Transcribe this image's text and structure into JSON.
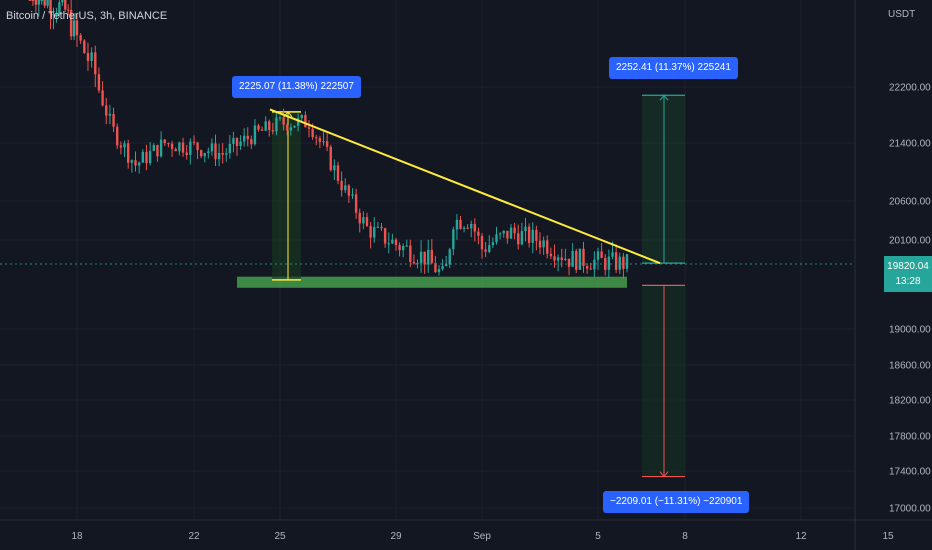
{
  "header": {
    "title": "Bitcoin / TetherUS, 3h, BINANCE",
    "currency": "USDT"
  },
  "price_tag": {
    "price": "19820.04",
    "countdown": "13:28"
  },
  "measures": [
    {
      "label": "2225.07 (11.38%) 222507"
    },
    {
      "label": "2252.41 (11.37%) 225241"
    },
    {
      "label": "−2209.01 (−11.31%) −220901"
    }
  ],
  "colors": {
    "background": "#131722",
    "up": "#26a69a",
    "down": "#ef5350",
    "trendline": "#ffeb3b",
    "support_zone": "#4caf50",
    "tag": "#2962ff"
  },
  "chart_data": {
    "type": "candlestick",
    "title": "Bitcoin / TetherUS, 3h, BINANCE",
    "ylabel": "USDT",
    "x_ticks": [
      "18",
      "22",
      "25",
      "29",
      "Sep",
      "5",
      "8",
      "12",
      "15"
    ],
    "y_ticks": [
      "22200.00",
      "21400.00",
      "20600.00",
      "20100.00",
      "19000.00",
      "18600.00",
      "18200.00",
      "17800.00",
      "17400.00",
      "17000.00"
    ],
    "visible_axis_range": {
      "x": [
        "Aug 16",
        "Sep 17"
      ],
      "y": [
        16900,
        23500
      ]
    },
    "last_price": 19820.04,
    "drawings": {
      "descending_trendline": {
        "from": {
          "date": "Aug 25",
          "price": 21880
        },
        "to": {
          "date": "Sep 7",
          "price": 19830
        }
      },
      "support_zone": {
        "from": "Aug 25",
        "to": "Sep 7",
        "price_range": [
          19520,
          19660
        ]
      },
      "height_measure": {
        "low": 19620,
        "high": 21845,
        "change": 2225.07,
        "percent": 11.38
      },
      "upside_target": {
        "low": 19830,
        "high": 22082,
        "change": 2252.41,
        "percent": 11.37
      },
      "downside_target": {
        "low": 17340,
        "high": 19550,
        "change": -2209.01,
        "percent": -11.31
      }
    }
  }
}
